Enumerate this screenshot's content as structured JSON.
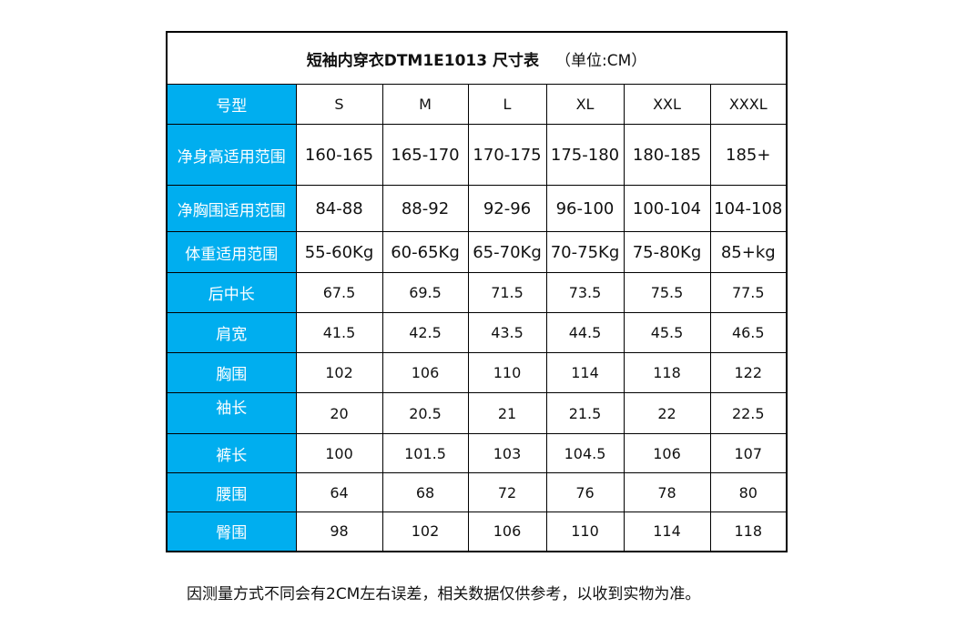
{
  "title": {
    "main": "短袖内穿衣DTM1E1013 尺寸表",
    "unit": "（单位:CM）"
  },
  "header": {
    "label": "号型",
    "sizes": [
      "S",
      "M",
      "L",
      "XL",
      "XXL",
      "XXXL"
    ]
  },
  "rows": [
    {
      "label": "净身高适用范围",
      "values": [
        "160-165",
        "165-170",
        "170-175",
        "175-180",
        "180-185",
        "185+"
      ]
    },
    {
      "label": "净胸围适用范围",
      "values": [
        "84-88",
        "88-92",
        "92-96",
        "96-100",
        "100-104",
        "104-108"
      ]
    },
    {
      "label": "体重适用范围",
      "values": [
        "55-60Kg",
        "60-65Kg",
        "65-70Kg",
        "70-75Kg",
        "75-80Kg",
        "85+kg"
      ]
    },
    {
      "label": "后中长",
      "values": [
        "67.5",
        "69.5",
        "71.5",
        "73.5",
        "75.5",
        "77.5"
      ]
    },
    {
      "label": "肩宽",
      "values": [
        "41.5",
        "42.5",
        "43.5",
        "44.5",
        "45.5",
        "46.5"
      ]
    },
    {
      "label": "胸围",
      "values": [
        "102",
        "106",
        "110",
        "114",
        "118",
        "122"
      ]
    },
    {
      "label": "袖长",
      "values": [
        "20",
        "20.5",
        "21",
        "21.5",
        "22",
        "22.5"
      ]
    },
    {
      "label": "裤长",
      "values": [
        "100",
        "101.5",
        "103",
        "104.5",
        "106",
        "107"
      ]
    },
    {
      "label": "腰围",
      "values": [
        "64",
        "68",
        "72",
        "76",
        "78",
        "80"
      ]
    },
    {
      "label": "臀围",
      "values": [
        "98",
        "102",
        "106",
        "110",
        "114",
        "118"
      ]
    }
  ],
  "note": "因测量方式不同会有2CM左右误差，相关数据仅供参考，以收到实物为准。",
  "colors": {
    "label_bg": "#00aeef",
    "label_text": "#ffffff",
    "border": "#000000"
  }
}
